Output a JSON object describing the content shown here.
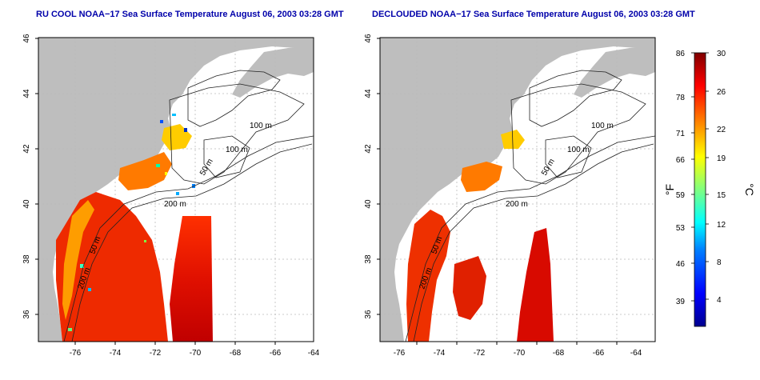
{
  "panels": [
    {
      "title": "RU COOL NOAA−17 Sea Surface Temperature August 06, 2003 03:28 GMT",
      "contour_labels": [
        "100 m",
        "100 m",
        "50 m",
        "200 m",
        "50 m",
        "200 m"
      ],
      "y_ticks": [
        "46",
        "44",
        "42",
        "40",
        "38",
        "36"
      ],
      "x_ticks": [
        "-76",
        "-74",
        "-72",
        "-70",
        "-68",
        "-66",
        "-64"
      ]
    },
    {
      "title": "DECLOUDED NOAA−17 Sea Surface Temperature August 06, 2003 03:28 GMT",
      "contour_labels": [
        "100 m",
        "100 m",
        "50 m",
        "200 m",
        "50 m",
        "200 m"
      ],
      "y_ticks": [
        "46",
        "44",
        "42",
        "40",
        "38",
        "36"
      ],
      "x_ticks": [
        "-76",
        "-74",
        "-72",
        "-70",
        "-68",
        "-66",
        "-64"
      ]
    }
  ],
  "colorbar": {
    "f_label": "°F",
    "c_label": "°C",
    "f_ticks": [
      "86",
      "78",
      "71",
      "66",
      "59",
      "53",
      "46",
      "39"
    ],
    "c_ticks": [
      "30",
      "26",
      "22",
      "19",
      "15",
      "12",
      "8",
      "4"
    ],
    "colors": [
      "#00008f",
      "#0000ff",
      "#0080ff",
      "#00ffff",
      "#80ff80",
      "#ffff00",
      "#ff8000",
      "#ff0000",
      "#800000"
    ]
  },
  "colors": {
    "land": "#bebebe",
    "ocean": "#ffffff",
    "contour": "#222222",
    "grid": "#bbbbbb",
    "title": "#0000aa"
  }
}
